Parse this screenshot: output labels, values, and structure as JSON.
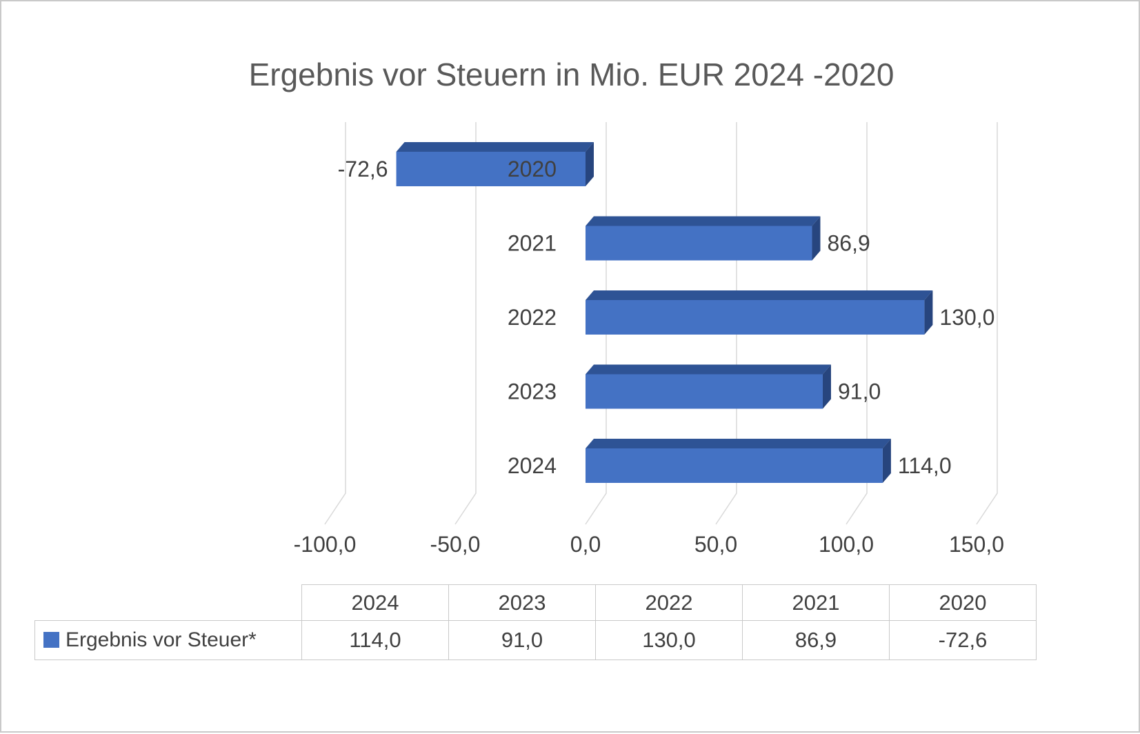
{
  "chart_data": {
    "type": "bar",
    "orientation": "horizontal",
    "style": "3d",
    "title": "Ergebnis vor Steuern in Mio. EUR 2024 -2020",
    "categories": [
      "2020",
      "2021",
      "2022",
      "2023",
      "2024"
    ],
    "values": [
      -72.6,
      86.9,
      130.0,
      91.0,
      114.0
    ],
    "value_labels": [
      "-72,6",
      "86,9",
      "130,0",
      "91,0",
      "114,0"
    ],
    "x_ticks": [
      -100,
      -50,
      0,
      50,
      100,
      150
    ],
    "x_tick_labels": [
      "-100,0",
      "-50,0",
      "0,0",
      "50,0",
      "100,0",
      "150,0"
    ],
    "xlim": [
      -115,
      165
    ],
    "grid": true,
    "legend_position": "bottom-table",
    "colors": {
      "bar_front": "#4472C4",
      "bar_top": "#2E5395",
      "bar_side": "#27457E",
      "grid": "#D9D9D9",
      "text": "#404040",
      "title": "#595959"
    }
  },
  "table": {
    "series_label": "Ergebnis vor Steuer*",
    "columns": [
      "2024",
      "2023",
      "2022",
      "2021",
      "2020"
    ],
    "values": [
      "114,0",
      "91,0",
      "130,0",
      "86,9",
      "-72,6"
    ],
    "legend_color": "#4472C4"
  }
}
